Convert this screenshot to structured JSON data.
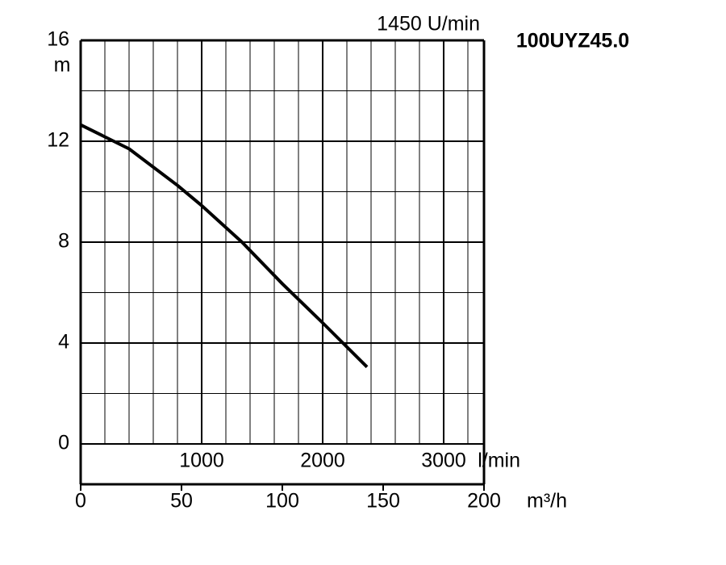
{
  "chart_data": {
    "type": "line",
    "title": "100UYZ45.0",
    "subtitle": "1450 U/min",
    "ylabel": "m",
    "xlabel": "m³/h",
    "x2label": "l/min",
    "x": [
      0,
      24,
      48,
      60,
      80,
      100,
      120,
      142
    ],
    "series": [
      {
        "name": "100UYZ45.0",
        "color": "#000000",
        "values": [
          12.65,
          11.7,
          10.25,
          9.45,
          8.0,
          6.35,
          4.8,
          3.05
        ]
      }
    ],
    "xlim": [
      0,
      200
    ],
    "xticks": [
      0,
      50,
      100,
      150,
      200
    ],
    "ylim": [
      0,
      16
    ],
    "yticks": [
      0,
      4,
      8,
      12,
      16
    ],
    "yminorticks": [
      2,
      6,
      10,
      14
    ],
    "x2lim": [
      0,
      3333.33
    ],
    "x2ticks": [
      1000,
      2000,
      3000
    ],
    "x2minorticks": [
      200,
      400,
      600,
      800,
      1200,
      1400,
      1600,
      1800,
      2200,
      2400,
      2600,
      2800,
      3200
    ],
    "grid": true
  }
}
